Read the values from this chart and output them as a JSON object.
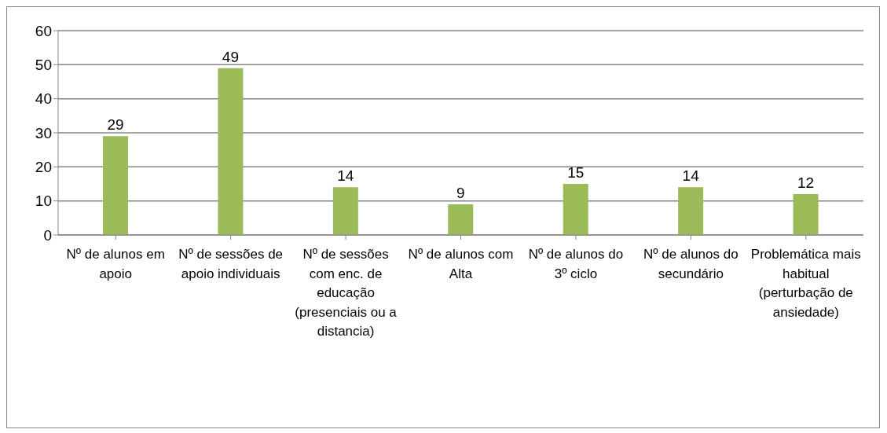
{
  "chart_data": {
    "type": "bar",
    "categories": [
      "Nº de alunos em apoio",
      "Nº de sessões de apoio individuais",
      "Nº de sessões com enc. de educação (presenciais ou a distancia)",
      "Nº de alunos com Alta",
      "Nº de alunos do 3º ciclo",
      "Nº de alunos do secundário",
      "Problemática mais habitual (perturbação de ansiedade)"
    ],
    "values": [
      29,
      49,
      14,
      9,
      15,
      14,
      12
    ],
    "color": "#9bbb59",
    "ylim": [
      0,
      60
    ],
    "yticks": [
      0,
      10,
      20,
      30,
      40,
      50,
      60
    ],
    "grid": "y",
    "legend": false,
    "data_labels": true
  }
}
